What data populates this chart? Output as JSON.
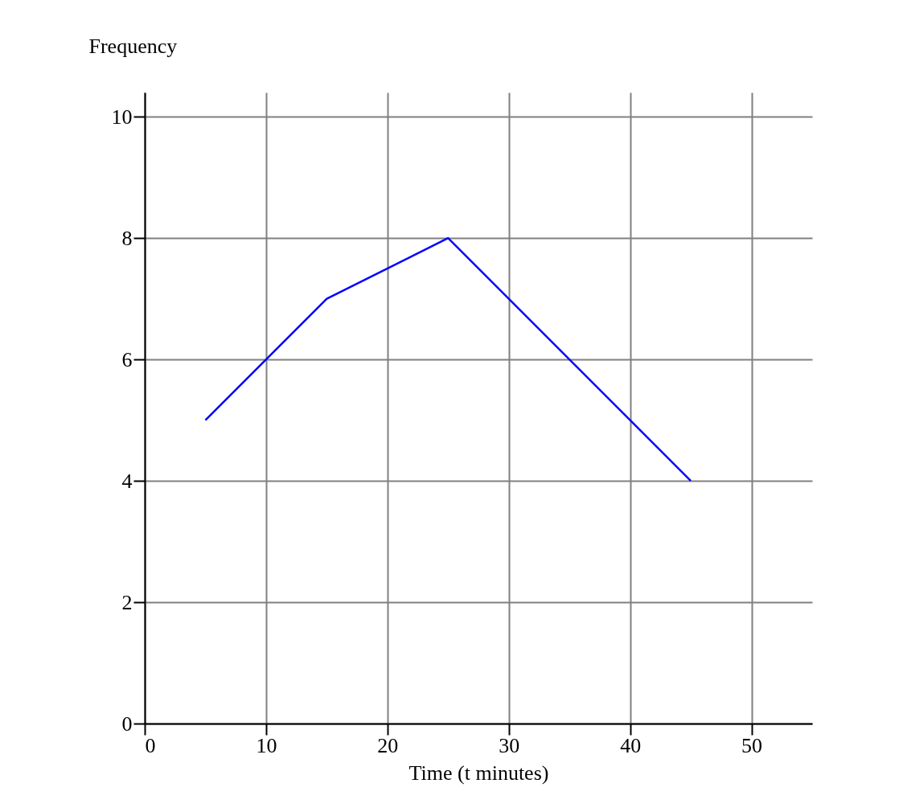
{
  "chart_data": {
    "type": "line",
    "xlabel": "Time (t minutes)",
    "ylabel": "Frequency",
    "x": [
      5,
      15,
      25,
      35,
      45
    ],
    "series": [
      {
        "color": "#0000ff",
        "values": [
          5,
          7,
          8,
          6,
          4
        ]
      }
    ],
    "xlim": [
      0,
      55
    ],
    "xticks": [
      0,
      10,
      20,
      30,
      40,
      50
    ],
    "ylim": [
      0,
      10.4
    ],
    "yticks": [
      0,
      2,
      4,
      6,
      8,
      10
    ],
    "grid": true,
    "marker": "none",
    "line_style": "solid"
  }
}
